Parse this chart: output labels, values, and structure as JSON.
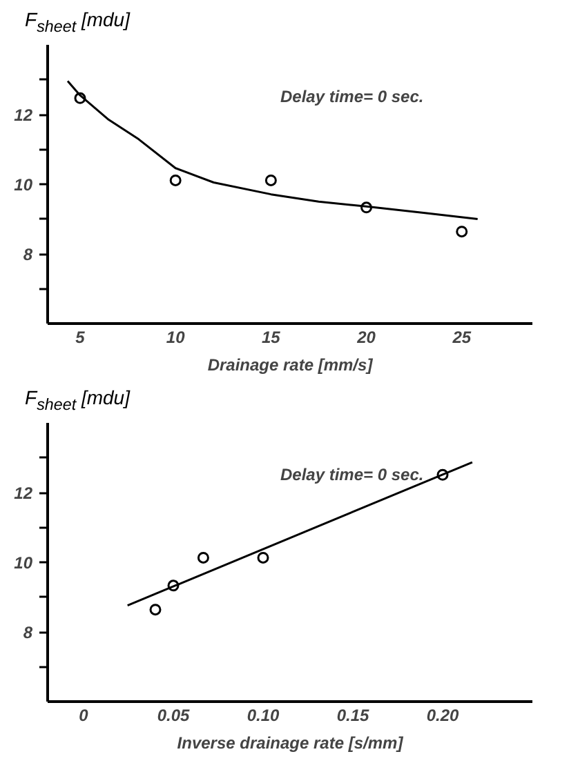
{
  "chart_data": [
    {
      "type": "scatter",
      "ylabel": "F$_{sheet}$ [mdu]",
      "xlabel": "Drainage rate [mm/s]",
      "annotations": [
        "Delay time= 0 sec."
      ],
      "xlim": [
        3.3,
        28.7
      ],
      "xticks": [
        5,
        10,
        15,
        20,
        25
      ],
      "ylim": [
        6,
        14
      ],
      "yticks": [
        {
          "value": 7,
          "label": null
        },
        8,
        {
          "value": 9,
          "label": null
        },
        10,
        {
          "value": 11,
          "label": null
        },
        12,
        {
          "value": 13,
          "label": null
        }
      ],
      "marker": "circle",
      "series": [
        {
          "color": "#000000",
          "x": [
            5,
            10,
            15,
            20,
            25
          ],
          "values": [
            12.47,
            10.11,
            10.11,
            9.33,
            8.64
          ]
        },
        {
          "type": "line",
          "marker": "none",
          "color": "#000000",
          "x": [
            4.35,
            5,
            6.5,
            8.07,
            10,
            12,
            15,
            17.5,
            20,
            23,
            25.83
          ],
          "values": [
            12.96,
            12.55,
            11.85,
            11.29,
            10.46,
            10.05,
            9.71,
            9.5,
            9.36,
            9.18,
            9.0
          ]
        }
      ]
    },
    {
      "type": "scatter",
      "ylabel": "F$_{sheet}$ [mdu]",
      "xlabel": "Inverse drainage rate [s/mm]",
      "annotations": [
        "Delay time= 0 sec."
      ],
      "xlim": [
        -0.02,
        0.25
      ],
      "xticks": [
        0,
        0.05,
        {
          "value": 0.1,
          "label": "0.10"
        },
        0.15,
        {
          "value": 0.2,
          "label": "0.20"
        }
      ],
      "ylim": [
        6,
        14
      ],
      "yticks": [
        {
          "value": 7,
          "label": null
        },
        8,
        {
          "value": 9,
          "label": null
        },
        10,
        {
          "value": 11,
          "label": null
        },
        12,
        {
          "value": 13,
          "label": null
        }
      ],
      "marker": "circle",
      "series": [
        {
          "color": "#000000",
          "x": [
            0.04,
            0.05,
            0.0667,
            0.1,
            0.2
          ],
          "values": [
            8.64,
            9.33,
            10.13,
            10.13,
            12.51
          ]
        },
        {
          "type": "line",
          "marker": "none",
          "color": "#000000",
          "x": [
            0.0245,
            0.2165
          ],
          "values": [
            8.76,
            12.87
          ]
        }
      ]
    }
  ]
}
